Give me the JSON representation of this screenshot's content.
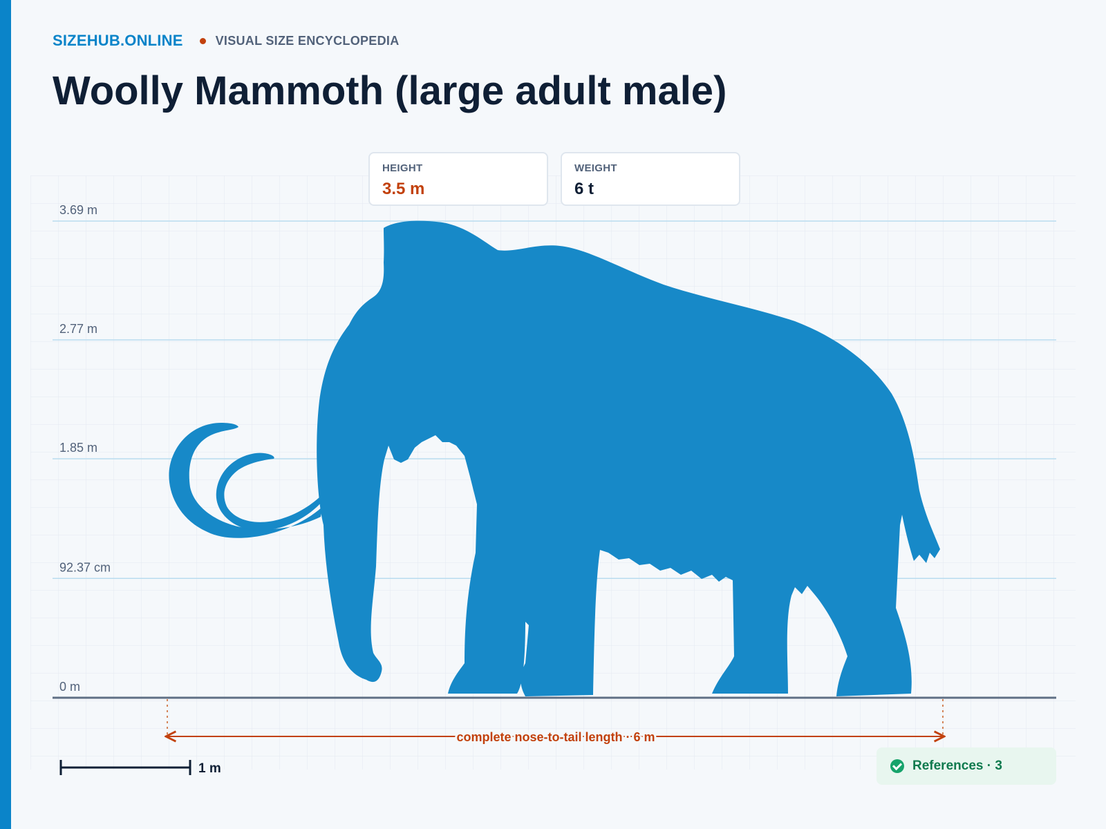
{
  "header": {
    "brand": "SIZEHUB.ONLINE",
    "subtitle": "VISUAL SIZE ENCYCLOPEDIA",
    "title": "Woolly Mammoth (large adult male)"
  },
  "stats": [
    {
      "label": "HEIGHT",
      "value": "3.5 m"
    },
    {
      "label": "WEIGHT",
      "value": "6 t"
    }
  ],
  "scale_bar": {
    "label": "1 m",
    "value_m": 1
  },
  "length_annotation": {
    "label": "complete nose-to-tail length · 6 m",
    "value_m": 6
  },
  "references": {
    "label": "References · 3",
    "icon": "check-circle-icon"
  },
  "colors": {
    "accent": "#0a84c9",
    "silhouette": "#1789c8",
    "highlight": "#c2410c",
    "text_dark": "#0f1f35",
    "success": "#0f7a4e"
  },
  "chart_data": {
    "type": "size-comparison",
    "subject": "Woolly Mammoth (large adult male)",
    "height_m": 3.5,
    "length_m": 6,
    "weight_t": 6,
    "y_ticks": [
      {
        "value": 0,
        "label": "0 m"
      },
      {
        "value": 0.9237,
        "label": "92.37 cm"
      },
      {
        "value": 1.85,
        "label": "1.85 m"
      },
      {
        "value": 2.77,
        "label": "2.77 m"
      },
      {
        "value": 3.69,
        "label": "3.69 m"
      }
    ],
    "grid": true
  }
}
